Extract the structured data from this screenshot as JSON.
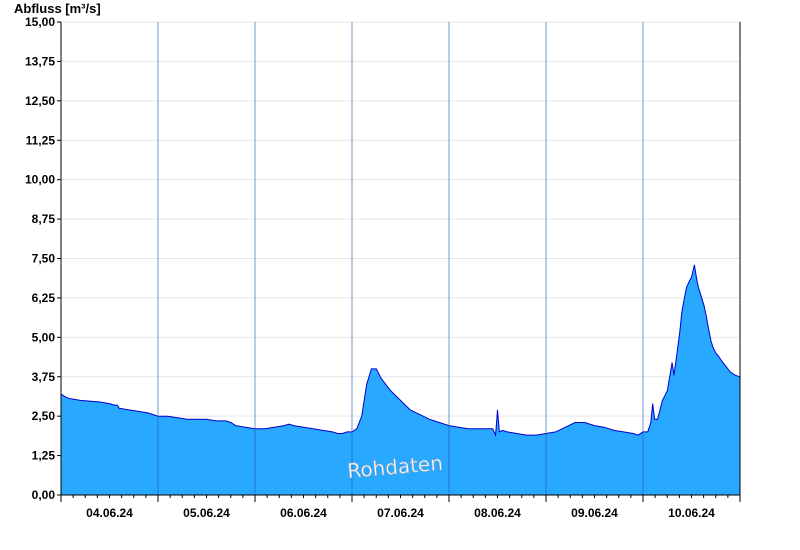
{
  "chart_data": {
    "type": "area",
    "ylabel": "Abfluss [m³/s]",
    "ylim": [
      0,
      15
    ],
    "yticks": [
      "0,00",
      "1,25",
      "2,50",
      "3,75",
      "5,00",
      "6,25",
      "7,50",
      "8,75",
      "10,00",
      "11,25",
      "12,50",
      "13,75",
      "15,00"
    ],
    "ytick_values": [
      0,
      1.25,
      2.5,
      3.75,
      5,
      6.25,
      7.5,
      8.75,
      10,
      11.25,
      12.5,
      13.75,
      15
    ],
    "xlim_days": [
      0,
      7
    ],
    "x_day_labels": [
      "04.06.24",
      "05.06.24",
      "06.06.24",
      "07.06.24",
      "08.06.24",
      "09.06.24",
      "10.06.24"
    ],
    "watermark": "Rohdaten",
    "grid": true,
    "colors": {
      "fill": "#29a8ff",
      "line": "#0000cc",
      "grid": "#e6e6e6",
      "axis": "#000000"
    },
    "series": [
      {
        "x_days": [
          0,
          0.05,
          0.1,
          0.2,
          0.4,
          0.5,
          0.55,
          0.58,
          0.6,
          0.7,
          0.8,
          0.9,
          0.95,
          1.0,
          1.1,
          1.2,
          1.3,
          1.5,
          1.6,
          1.7,
          1.75,
          1.8,
          1.9,
          2.0,
          2.1,
          2.2,
          2.3,
          2.35,
          2.4,
          2.5,
          2.6,
          2.7,
          2.8,
          2.85,
          2.9,
          2.95,
          3.0,
          3.05,
          3.1,
          3.15,
          3.2,
          3.25,
          3.3,
          3.4,
          3.5,
          3.6,
          3.7,
          3.8,
          3.9,
          4.0,
          4.1,
          4.2,
          4.3,
          4.4,
          4.45,
          4.48,
          4.5,
          4.52,
          4.55,
          4.6,
          4.7,
          4.8,
          4.9,
          5.0,
          5.1,
          5.2,
          5.3,
          5.4,
          5.5,
          5.6,
          5.7,
          5.8,
          5.9,
          5.95,
          6.0,
          6.05,
          6.08,
          6.1,
          6.12,
          6.15,
          6.2,
          6.25,
          6.3,
          6.32,
          6.35,
          6.38,
          6.4,
          6.43,
          6.45,
          6.48,
          6.5,
          6.53,
          6.55,
          6.57,
          6.6,
          6.63,
          6.65,
          6.68,
          6.7,
          6.72,
          6.75,
          6.78,
          6.8,
          6.85,
          6.9,
          6.95,
          7.0
        ],
        "values": [
          3.2,
          3.1,
          3.05,
          3.0,
          2.95,
          2.9,
          2.85,
          2.85,
          2.75,
          2.7,
          2.65,
          2.6,
          2.55,
          2.5,
          2.5,
          2.45,
          2.4,
          2.4,
          2.35,
          2.35,
          2.3,
          2.2,
          2.15,
          2.1,
          2.1,
          2.15,
          2.2,
          2.25,
          2.2,
          2.15,
          2.1,
          2.05,
          2.0,
          1.95,
          1.95,
          2.0,
          2.0,
          2.1,
          2.5,
          3.5,
          4.0,
          4.0,
          3.7,
          3.3,
          3.0,
          2.7,
          2.55,
          2.4,
          2.3,
          2.2,
          2.15,
          2.1,
          2.1,
          2.1,
          2.1,
          1.9,
          2.7,
          2.0,
          2.05,
          2.0,
          1.95,
          1.9,
          1.9,
          1.95,
          2.0,
          2.15,
          2.3,
          2.3,
          2.2,
          2.15,
          2.05,
          2.0,
          1.95,
          1.9,
          2.0,
          2.0,
          2.3,
          2.9,
          2.4,
          2.4,
          3.0,
          3.3,
          4.2,
          3.8,
          4.5,
          5.2,
          5.8,
          6.3,
          6.6,
          6.8,
          6.9,
          7.3,
          6.9,
          6.6,
          6.3,
          6.0,
          5.7,
          5.2,
          4.9,
          4.7,
          4.5,
          4.4,
          4.3,
          4.1,
          3.9,
          3.8,
          3.75
        ]
      }
    ]
  }
}
